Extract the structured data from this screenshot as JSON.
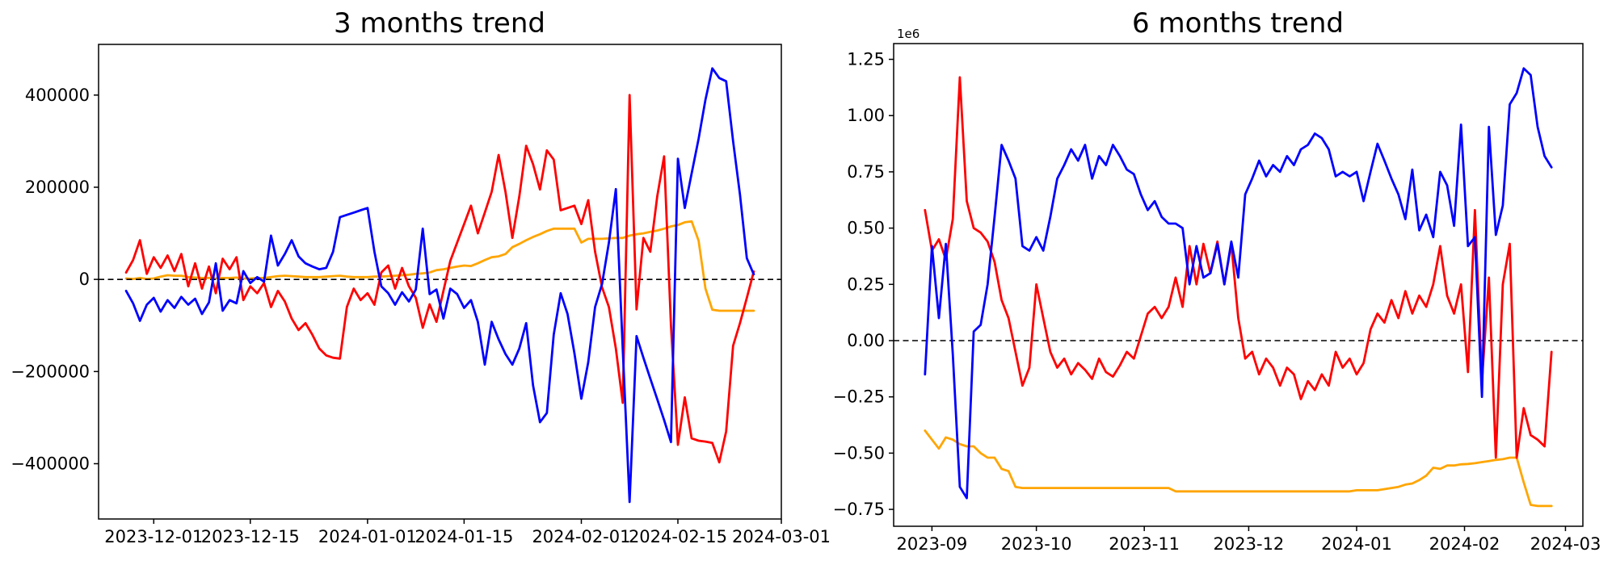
{
  "figure": {
    "background": "#ffffff"
  },
  "chart_data": [
    {
      "type": "line",
      "title": "3 months trend",
      "xlabel": "",
      "ylabel": "",
      "legend": null,
      "grid": false,
      "zero_line": true,
      "axes": {
        "xlim": [
          -4,
          95
        ],
        "ylim": [
          -520000,
          510000
        ],
        "x_unit": "days since 2023-11-27",
        "x_ticks": [
          {
            "label": "2023-12-01",
            "day": 4
          },
          {
            "label": "2023-12-15",
            "day": 18
          },
          {
            "label": "2024-01-01",
            "day": 35
          },
          {
            "label": "2024-01-15",
            "day": 49
          },
          {
            "label": "2024-02-01",
            "day": 66
          },
          {
            "label": "2024-02-15",
            "day": 80
          },
          {
            "label": "2024-03-01",
            "day": 95
          }
        ],
        "y_ticks": [
          {
            "label": "400000",
            "value": 400000
          },
          {
            "label": "200000",
            "value": 200000
          },
          {
            "label": "0",
            "value": 0
          },
          {
            "label": "−200000",
            "value": -200000
          },
          {
            "label": "−400000",
            "value": -400000
          }
        ],
        "offset_label": ""
      },
      "series": [
        {
          "name": "orange",
          "color": "#ffa500",
          "start_day": 0,
          "day_step": 1,
          "values": [
            2000,
            1000,
            3000,
            1000,
            2000,
            6000,
            9000,
            8000,
            8000,
            5000,
            4000,
            3000,
            3000,
            2000,
            3000,
            3000,
            4000,
            2000,
            2000,
            3000,
            3000,
            5000,
            7000,
            8000,
            7000,
            6000,
            5000,
            5000,
            5000,
            6000,
            7000,
            8000,
            6000,
            5000,
            5000,
            5000,
            6000,
            6000,
            7000,
            8000,
            9000,
            10000,
            12000,
            13000,
            15000,
            20000,
            22000,
            25000,
            28000,
            30000,
            29000,
            35000,
            42000,
            48000,
            50000,
            55000,
            70000,
            77000,
            85000,
            92000,
            98000,
            105000,
            110000,
            110000,
            110000,
            110000,
            80000,
            88000,
            88000,
            88000,
            89000,
            90000,
            90000,
            95000,
            98000,
            100000,
            103000,
            106000,
            110000,
            115000,
            118000,
            124000,
            126000,
            84000,
            -20000,
            -66000,
            -68000,
            -68000,
            -68000,
            -68000,
            -68000,
            -68000
          ]
        },
        {
          "name": "red",
          "color": "#ff0000",
          "start_day": 0,
          "day_step": 1,
          "values": [
            15000,
            42000,
            85000,
            12000,
            48000,
            25000,
            52000,
            18000,
            55000,
            -15000,
            35000,
            -20000,
            28000,
            -30000,
            45000,
            22000,
            48000,
            -45000,
            -15000,
            -30000,
            -8000,
            -60000,
            -25000,
            -48000,
            -85000,
            -110000,
            -95000,
            -120000,
            -150000,
            -165000,
            -170000,
            -172000,
            -60000,
            -20000,
            -45000,
            -30000,
            -55000,
            15000,
            30000,
            -20000,
            25000,
            -15000,
            -40000,
            -105000,
            -54000,
            -92000,
            -25000,
            40000,
            80000,
            120000,
            160000,
            100000,
            145000,
            190000,
            270000,
            190000,
            90000,
            180000,
            290000,
            250000,
            195000,
            280000,
            260000,
            150000,
            155000,
            160000,
            120000,
            172000,
            60000,
            -17000,
            -60000,
            -150000,
            -268000,
            400000,
            -65000,
            90000,
            60000,
            180000,
            267000,
            -100000,
            -359000,
            -256000,
            -345000,
            -350000,
            -352000,
            -355000,
            -397000,
            -330000,
            -144000,
            -95000,
            -40000,
            17000
          ]
        },
        {
          "name": "blue",
          "color": "#0000ff",
          "start_day": 0,
          "day_step": 1,
          "values": [
            -25000,
            -52000,
            -90000,
            -55000,
            -40000,
            -70000,
            -45000,
            -62000,
            -38000,
            -55000,
            -42000,
            -75000,
            -50000,
            35000,
            -68000,
            -45000,
            -52000,
            18000,
            -8000,
            5000,
            -5000,
            95000,
            30000,
            55000,
            85000,
            50000,
            35000,
            28000,
            22000,
            25000,
            60000,
            135000,
            140000,
            145000,
            150000,
            155000,
            60000,
            -15000,
            -30000,
            -55000,
            -28000,
            -48000,
            -22000,
            110000,
            -32000,
            -22000,
            -85000,
            -20000,
            -32000,
            -62000,
            -45000,
            -92000,
            -185000,
            -92000,
            -130000,
            -162000,
            -185000,
            -150000,
            -95000,
            -230000,
            -310000,
            -290000,
            -120000,
            -30000,
            -75000,
            -160000,
            -259000,
            -180000,
            -60000,
            -10000,
            80000,
            196000,
            -150000,
            -483000,
            -123000,
            -170000,
            -215000,
            -260000,
            -305000,
            -353000,
            262000,
            155000,
            230000,
            305000,
            390000,
            458000,
            437000,
            430000,
            300000,
            184000,
            46000,
            11000
          ]
        }
      ]
    },
    {
      "type": "line",
      "title": "6 months trend",
      "xlabel": "",
      "ylabel": "",
      "legend": null,
      "grid": false,
      "zero_line": true,
      "axes": {
        "xlim": [
          -9,
          189
        ],
        "ylim": [
          -825000,
          1320000
        ],
        "x_unit": "days since 2023-08-30",
        "x_ticks": [
          {
            "label": "2023-09",
            "day": 2
          },
          {
            "label": "2023-10",
            "day": 32
          },
          {
            "label": "2023-11",
            "day": 63
          },
          {
            "label": "2023-12",
            "day": 93
          },
          {
            "label": "2024-01",
            "day": 124
          },
          {
            "label": "2024-02",
            "day": 155
          },
          {
            "label": "2024-03",
            "day": 184
          }
        ],
        "y_ticks": [
          {
            "label": "1.25",
            "value": 1250000
          },
          {
            "label": "1.00",
            "value": 1000000
          },
          {
            "label": "0.75",
            "value": 750000
          },
          {
            "label": "0.50",
            "value": 500000
          },
          {
            "label": "0.25",
            "value": 250000
          },
          {
            "label": "0.00",
            "value": 0
          },
          {
            "label": "−0.25",
            "value": -250000
          },
          {
            "label": "−0.50",
            "value": -500000
          },
          {
            "label": "−0.75",
            "value": -750000
          }
        ],
        "offset_label": "1e6"
      },
      "series": [
        {
          "name": "orange",
          "color": "#ffa500",
          "start_day": 0,
          "day_step": 2,
          "values": [
            -400000,
            -440000,
            -480000,
            -430000,
            -440000,
            -460000,
            -470000,
            -470000,
            -500000,
            -520000,
            -520000,
            -570000,
            -580000,
            -650000,
            -655000,
            -655000,
            -655000,
            -655000,
            -655000,
            -655000,
            -655000,
            -655000,
            -655000,
            -655000,
            -655000,
            -655000,
            -655000,
            -655000,
            -655000,
            -655000,
            -655000,
            -655000,
            -655000,
            -655000,
            -655000,
            -655000,
            -670000,
            -670000,
            -670000,
            -670000,
            -670000,
            -670000,
            -670000,
            -670000,
            -670000,
            -670000,
            -670000,
            -670000,
            -670000,
            -670000,
            -670000,
            -670000,
            -670000,
            -670000,
            -670000,
            -670000,
            -670000,
            -670000,
            -670000,
            -670000,
            -670000,
            -670000,
            -665000,
            -665000,
            -665000,
            -665000,
            -660000,
            -655000,
            -650000,
            -640000,
            -635000,
            -620000,
            -600000,
            -565000,
            -570000,
            -555000,
            -555000,
            -550000,
            -548000,
            -545000,
            -540000,
            -535000,
            -530000,
            -527000,
            -520000,
            -520000,
            -630000,
            -730000,
            -735000,
            -735000,
            -735000
          ]
        },
        {
          "name": "red",
          "color": "#ff0000",
          "start_day": 0,
          "day_step": 2,
          "values": [
            580000,
            400000,
            450000,
            360000,
            540000,
            1170000,
            620000,
            500000,
            480000,
            440000,
            350000,
            180000,
            100000,
            -50000,
            -200000,
            -120000,
            250000,
            100000,
            -50000,
            -120000,
            -80000,
            -150000,
            -100000,
            -130000,
            -170000,
            -80000,
            -140000,
            -160000,
            -110000,
            -50000,
            -80000,
            20000,
            120000,
            150000,
            100000,
            150000,
            280000,
            150000,
            420000,
            250000,
            430000,
            300000,
            440000,
            250000,
            430000,
            100000,
            -80000,
            -50000,
            -150000,
            -80000,
            -120000,
            -200000,
            -120000,
            -150000,
            -260000,
            -180000,
            -220000,
            -150000,
            -200000,
            -50000,
            -120000,
            -80000,
            -150000,
            -100000,
            50000,
            120000,
            80000,
            180000,
            100000,
            220000,
            120000,
            200000,
            150000,
            250000,
            420000,
            200000,
            120000,
            250000,
            -140000,
            580000,
            -180000,
            280000,
            -520000,
            250000,
            430000,
            -520000,
            -300000,
            -420000,
            -440000,
            -470000,
            -50000
          ]
        },
        {
          "name": "blue",
          "color": "#0000ff",
          "start_day": 0,
          "day_step": 2,
          "values": [
            -150000,
            420000,
            100000,
            430000,
            -60000,
            -650000,
            -700000,
            40000,
            70000,
            250000,
            550000,
            870000,
            800000,
            720000,
            420000,
            400000,
            460000,
            400000,
            550000,
            720000,
            780000,
            850000,
            800000,
            870000,
            720000,
            820000,
            780000,
            870000,
            820000,
            760000,
            740000,
            650000,
            580000,
            620000,
            550000,
            520000,
            520000,
            500000,
            250000,
            420000,
            280000,
            300000,
            430000,
            250000,
            440000,
            280000,
            650000,
            720000,
            800000,
            730000,
            780000,
            750000,
            820000,
            780000,
            850000,
            870000,
            920000,
            900000,
            850000,
            730000,
            750000,
            730000,
            750000,
            620000,
            750000,
            875000,
            800000,
            720000,
            650000,
            540000,
            760000,
            490000,
            560000,
            460000,
            750000,
            690000,
            510000,
            960000,
            420000,
            460000,
            -250000,
            950000,
            470000,
            600000,
            1050000,
            1100000,
            1210000,
            1180000,
            950000,
            820000,
            770000
          ]
        }
      ]
    }
  ]
}
